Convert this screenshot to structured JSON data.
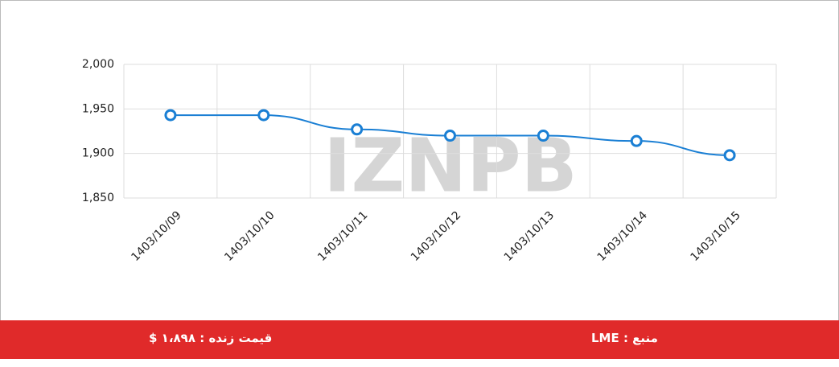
{
  "chart_data": {
    "type": "line",
    "categories": [
      "1403/10/09",
      "1403/10/10",
      "1403/10/11",
      "1403/10/12",
      "1403/10/13",
      "1403/10/14",
      "1403/10/15"
    ],
    "values": [
      1943,
      1943,
      1927,
      1920,
      1920,
      1914,
      1898
    ],
    "color": "#1a7fd4",
    "ylim": [
      1850,
      2000
    ],
    "yticks": [
      {
        "value": 1850,
        "label": "1,850"
      },
      {
        "value": 1900,
        "label": "1,900"
      },
      {
        "value": 1950,
        "label": "1,950"
      },
      {
        "value": 2000,
        "label": "2,000"
      }
    ],
    "grid": true
  },
  "watermark": "IZNPB",
  "footer": {
    "live_price": "قیمت زنده : ۱،۸۹۸ $",
    "source": "منبع : LME"
  }
}
